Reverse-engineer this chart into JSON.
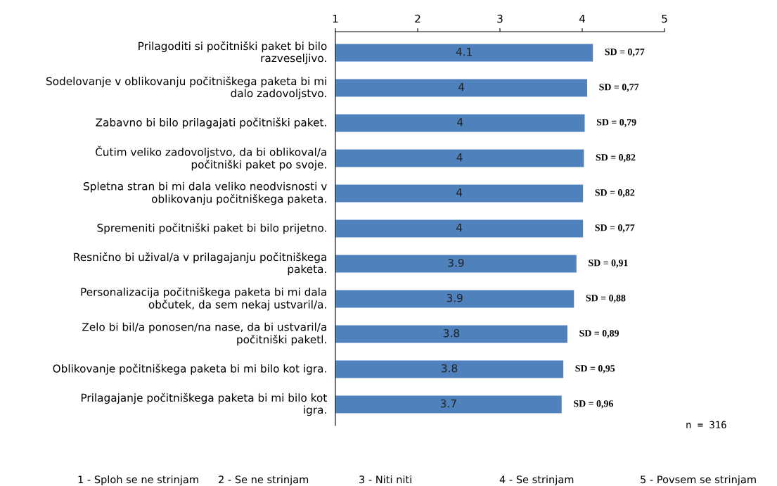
{
  "chart_data": {
    "type": "bar",
    "orientation": "horizontal",
    "categories": [
      "Prilagoditi si počitniški paket bi bilo razveseljivo.",
      "Sodelovanje v oblikovanju počitniškega paketa bi mi dalo zadovoljstvo.",
      "Zabavno bi bilo prilagajati počitniški paket.",
      "Čutim veliko zadovoljstvo, da bi oblikoval/a počitniški paket po svoje.",
      "Spletna stran bi mi dala veliko neodvisnosti v oblikovanju počitniškega paketa.",
      "Spremeniti počitniški paket bi bilo prijetno.",
      "Resnično bi užival/a v prilagajanju počitniškega paketa.",
      "Personalizacija počitniškega paketa bi mi dala občutek, da sem nekaj ustvaril/a.",
      "Zelo bi bil/a ponosen/na nase, da bi ustvaril/a počitniški paketl.",
      "Oblikovanje počitniškega paketa bi mi bilo kot igra.",
      "Prilagajanje počitniškega paketa bi mi bilo kot igra."
    ],
    "values": [
      4.13,
      4.06,
      4.03,
      4.02,
      4.01,
      4.01,
      3.93,
      3.9,
      3.82,
      3.77,
      3.75
    ],
    "value_labels": [
      "4.1",
      "4",
      "4",
      "4",
      "4",
      "4",
      "3.9",
      "3.9",
      "3.8",
      "3.8",
      "3.7"
    ],
    "color": "#4f81bd",
    "xlim": [
      1,
      5
    ],
    "xticks": [
      1,
      2,
      3,
      4,
      5
    ],
    "grid": false,
    "legend": false,
    "annotations": [
      "SD = 0,77",
      "SD = 0,77",
      "SD = 0,79",
      "SD = 0,82",
      "SD = 0,82",
      "SD = 0,77",
      "SD = 0,91",
      "SD = 0,88",
      "SD = 0,89",
      "SD = 0,95",
      "SD = 0,96",
      "n = 316",
      "1 - Sploh se ne strinjam",
      "2 - Se ne strinjam",
      "3 - Niti niti",
      "4 - Se strinjam",
      "5 - Povsem se strinjam"
    ]
  }
}
